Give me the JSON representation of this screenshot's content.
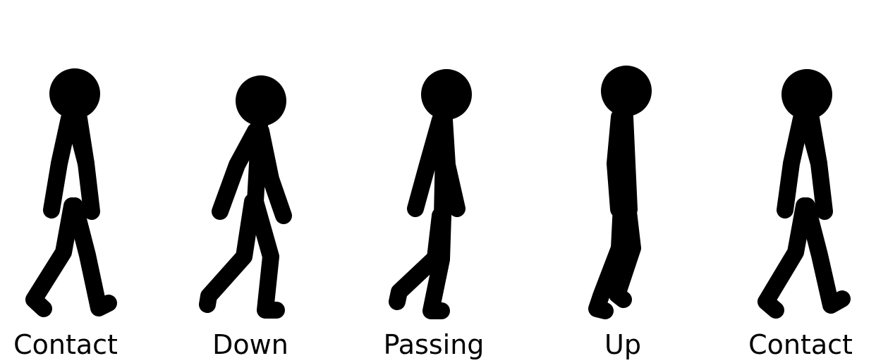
{
  "figure": {
    "ink_color": "#000000",
    "background_color": "#ffffff"
  },
  "poses": [
    {
      "label": "Contact"
    },
    {
      "label": "Down"
    },
    {
      "label": "Passing"
    },
    {
      "label": "Up"
    },
    {
      "label": "Contact"
    }
  ]
}
